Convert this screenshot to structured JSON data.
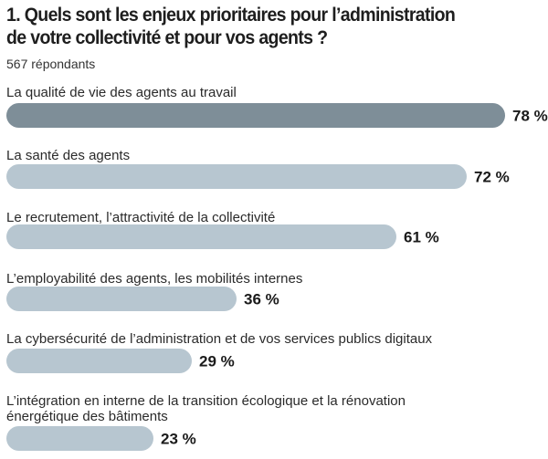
{
  "title_line1": "1. Quels sont les enjeux prioritaires pour l’administration",
  "title_line2": "de votre collectivité et pour vos agents ?",
  "respondents": "567 répondants",
  "colors": {
    "highlight": "#7e8e98",
    "bar": "#b7c6d0",
    "text": "#1e1e1e"
  },
  "chart_data": {
    "type": "bar",
    "orientation": "horizontal",
    "unit": "%",
    "categories": [
      [
        "La qualité de vie des agents au travail"
      ],
      [
        "La santé des agents"
      ],
      [
        "Le recrutement, l’attractivité de la collectivité"
      ],
      [
        "L’employabilité des agents, les mobilités internes"
      ],
      [
        "La cybersécurité de l’administration et de vos services publics digitaux"
      ],
      [
        "L’intégration en interne de la transition écologique et la rénovation",
        "énergétique des bâtiments"
      ]
    ],
    "values": [
      78,
      72,
      61,
      36,
      29,
      23
    ],
    "value_labels": [
      "78 %",
      "72 %",
      "61 %",
      "36 %",
      "29 %",
      "23 %"
    ],
    "highlighted_index": 0
  }
}
